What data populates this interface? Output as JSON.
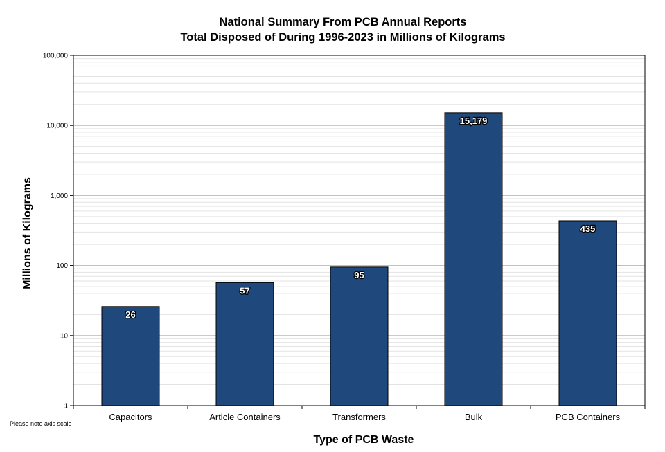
{
  "chart_data": {
    "type": "bar",
    "title": "National Summary From PCB Annual Reports",
    "subtitle": "Total Disposed of During 1996-2023 in Millions of Kilograms",
    "xlabel": "Type of PCB Waste",
    "ylabel": "Millions of Kilograms",
    "yscale": "log",
    "ylim": [
      1,
      100000
    ],
    "yticks": [
      "1",
      "10",
      "100",
      "1,000",
      "10,000",
      "100,000"
    ],
    "categories": [
      "Capacitors",
      "Article Containers",
      "Transformers",
      "Bulk",
      "PCB Containers"
    ],
    "values": [
      26,
      57,
      95,
      15179,
      435
    ],
    "data_labels": [
      "26",
      "57",
      "95",
      "15,179",
      "435"
    ],
    "grid": true,
    "legend": "none",
    "bar_color": "#1f497d",
    "note": "Please note axis scale"
  }
}
